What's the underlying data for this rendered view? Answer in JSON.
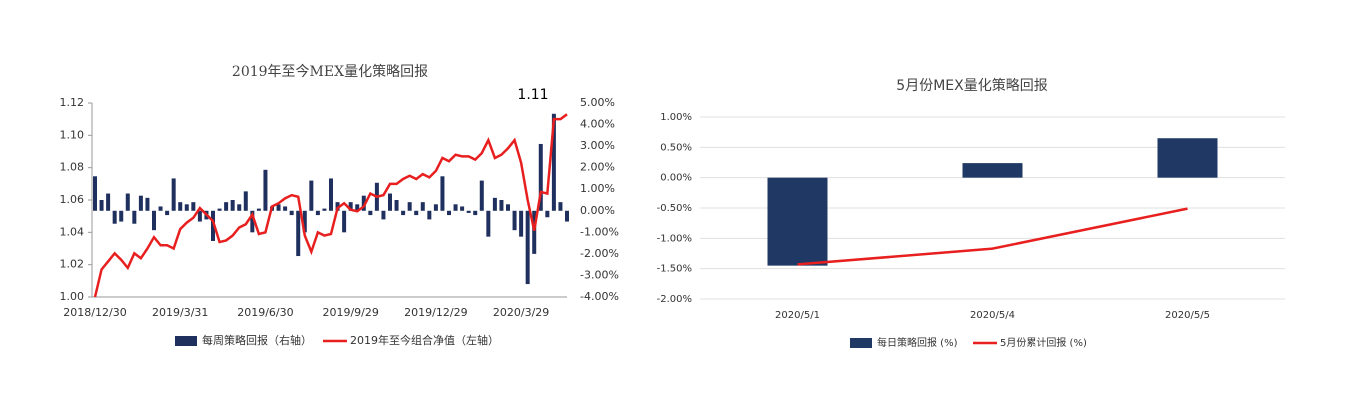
{
  "chart_data": [
    {
      "type": "combo",
      "title": "2019年至今MEX量化策略回报",
      "annotation": "1.11",
      "categories": [
        "2018/12/30",
        null,
        null,
        null,
        null,
        null,
        null,
        null,
        null,
        null,
        null,
        null,
        null,
        "2019/3/31",
        null,
        null,
        null,
        null,
        null,
        null,
        null,
        null,
        null,
        null,
        null,
        null,
        "2019/6/30",
        null,
        null,
        null,
        null,
        null,
        null,
        null,
        null,
        null,
        null,
        null,
        null,
        "2019/9/29",
        null,
        null,
        null,
        null,
        null,
        null,
        null,
        null,
        null,
        null,
        null,
        null,
        "2019/12/29",
        null,
        null,
        null,
        null,
        null,
        null,
        null,
        null,
        null,
        null,
        null,
        null,
        "2020/3/29",
        null,
        null,
        null,
        null,
        null,
        null,
        null
      ],
      "series": [
        {
          "name": "每周策略回报（右轴）",
          "type": "bar",
          "axis": "y2",
          "color": "#1f2f5e",
          "values": [
            1.6,
            0.5,
            0.8,
            -0.6,
            -0.5,
            0.8,
            -0.6,
            0.7,
            0.6,
            -0.9,
            0.2,
            -0.2,
            1.5,
            0.4,
            0.3,
            0.4,
            -0.5,
            -0.4,
            -1.4,
            0.1,
            0.4,
            0.5,
            0.3,
            0.9,
            -1.0,
            0.1,
            1.9,
            0.2,
            0.3,
            0.2,
            -0.2,
            -2.1,
            -1.0,
            1.4,
            -0.2,
            0.1,
            1.5,
            0.4,
            -1.0,
            0.4,
            0.3,
            0.7,
            -0.2,
            1.3,
            -0.4,
            0.8,
            0.5,
            -0.2,
            0.4,
            -0.2,
            0.4,
            -0.4,
            0.3,
            1.6,
            -0.2,
            0.3,
            0.2,
            -0.1,
            -0.2,
            1.4,
            -1.2,
            0.6,
            0.5,
            0.3,
            -0.9,
            -1.2,
            -3.4,
            -2.0,
            3.1,
            -0.3,
            4.5,
            0.4,
            -0.5
          ]
        },
        {
          "name": "2019年至今组合净值（左轴）",
          "type": "line",
          "axis": "y",
          "color": "#e81f1f",
          "values": [
            1.0,
            1.017,
            1.022,
            1.027,
            1.023,
            1.018,
            1.027,
            1.024,
            1.03,
            1.037,
            1.032,
            1.032,
            1.03,
            1.042,
            1.046,
            1.049,
            1.055,
            1.051,
            1.047,
            1.034,
            1.035,
            1.038,
            1.043,
            1.045,
            1.051,
            1.039,
            1.04,
            1.056,
            1.058,
            1.061,
            1.063,
            1.062,
            1.038,
            1.028,
            1.04,
            1.038,
            1.039,
            1.055,
            1.058,
            1.054,
            1.053,
            1.056,
            1.064,
            1.062,
            1.063,
            1.07,
            1.07,
            1.073,
            1.075,
            1.073,
            1.076,
            1.074,
            1.078,
            1.086,
            1.084,
            1.088,
            1.087,
            1.087,
            1.085,
            1.089,
            1.097,
            1.086,
            1.088,
            1.092,
            1.097,
            1.083,
            1.06,
            1.041,
            1.065,
            1.064,
            1.11,
            1.11,
            1.113
          ]
        }
      ],
      "ylim": [
        1.0,
        1.12
      ],
      "yticks": [
        {
          "value": 1.0,
          "label": "1.00"
        },
        1.02,
        1.04,
        1.06,
        1.08,
        {
          "value": 1.1,
          "label": "1.10"
        },
        1.12
      ],
      "y2lim": [
        -4,
        5
      ],
      "y2ticks": [
        {
          "value": -4,
          "label": "-4.00%"
        },
        {
          "value": -3,
          "label": "-3.00%"
        },
        {
          "value": -2,
          "label": "-2.00%"
        },
        {
          "value": -1,
          "label": "-1.00%"
        },
        {
          "value": 0,
          "label": "0.00%"
        },
        {
          "value": 1,
          "label": "1.00%"
        },
        {
          "value": 2,
          "label": "2.00%"
        },
        {
          "value": 3,
          "label": "3.00%"
        },
        {
          "value": 4,
          "label": "4.00%"
        },
        {
          "value": 5,
          "label": "5.00%"
        }
      ],
      "grid": false
    },
    {
      "type": "combo",
      "title": "5月份MEX量化策略回报",
      "categories": [
        "2020/5/1",
        "2020/5/4",
        "2020/5/5"
      ],
      "series": [
        {
          "name": "每日策略回报 (%)",
          "type": "bar",
          "axis": "y",
          "color": "#203864",
          "values": [
            -1.45,
            0.24,
            0.65
          ]
        },
        {
          "name": "5月份累计回报 (%)",
          "type": "line",
          "axis": "y",
          "color": "#e81f1f",
          "values": [
            -1.43,
            -1.17,
            -0.51
          ]
        }
      ],
      "ylim": [
        -2,
        1
      ],
      "yticks": [
        {
          "value": -2,
          "label": "-2.00%"
        },
        {
          "value": -1.5,
          "label": "-1.50%"
        },
        {
          "value": -1,
          "label": "-1.00%"
        },
        {
          "value": -0.5,
          "label": "-0.50%"
        },
        {
          "value": 0,
          "label": "0.00%"
        },
        {
          "value": 0.5,
          "label": "0.50%"
        },
        {
          "value": 1,
          "label": "1.00%"
        }
      ],
      "grid": true
    }
  ]
}
